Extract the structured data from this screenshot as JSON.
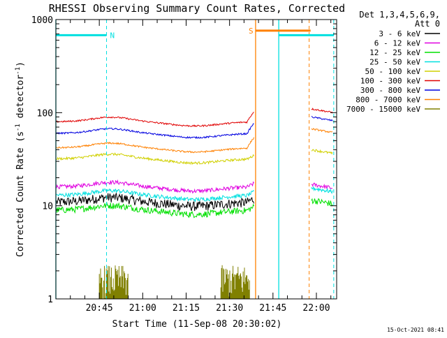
{
  "chart_data": {
    "type": "line",
    "title": "RHESSI Observing Summary Count Rates, Corrected",
    "xlabel": "Start Time (11-Sep-08 20:30:02)",
    "ylabel": "Corrected Count Rate (s⁻¹ detector⁻¹)",
    "ylabel_main": "Corrected Count Rate (s",
    "ylabel_sup1": "-1",
    "ylabel_mid": " detector",
    "ylabel_sup2": "-1",
    "ylabel_end": ")",
    "yscale": "log",
    "ylim": [
      1,
      1000
    ],
    "xlim_minutes": [
      0,
      97
    ],
    "x_unit": "minutes after 20:30:02",
    "y_ticks": [
      {
        "value": 1,
        "label": "1"
      },
      {
        "value": 10,
        "label": "10"
      },
      {
        "value": 100,
        "label": "100"
      },
      {
        "value": 1000,
        "label": "1000"
      }
    ],
    "x_ticks": [
      {
        "value": 15,
        "label": "20:45"
      },
      {
        "value": 30,
        "label": "21:00"
      },
      {
        "value": 45,
        "label": "21:15"
      },
      {
        "value": 60,
        "label": "21:30"
      },
      {
        "value": 75,
        "label": "21:45"
      },
      {
        "value": 90,
        "label": "22:00"
      }
    ],
    "legend_header": [
      "Det 1,3,4,5,6,9,",
      "Att 0"
    ],
    "legend_placement": "right",
    "series": [
      {
        "name": "3 - 6 keV",
        "color": "#000000",
        "base": 11,
        "tail": 0,
        "noise": 0.12
      },
      {
        "name": "6 - 12 keV",
        "color": "#e000e0",
        "base": 16,
        "tail": 17,
        "noise": 0.05
      },
      {
        "name": "12 - 25 keV",
        "color": "#00e000",
        "base": 9,
        "tail": 11.5,
        "noise": 0.08
      },
      {
        "name": "25 - 50 keV",
        "color": "#00e0e0",
        "base": 13,
        "tail": 15.5,
        "noise": 0.05
      },
      {
        "name": "50 - 100 keV",
        "color": "#d0d000",
        "base": 32,
        "tail": 40,
        "noise": 0.03
      },
      {
        "name": "100 - 300 keV",
        "color": "#e00000",
        "base": 80,
        "tail": 110,
        "noise": 0.02
      },
      {
        "name": "300 - 800 keV",
        "color": "#0000e0",
        "base": 60,
        "tail": 90,
        "noise": 0.02
      },
      {
        "name": "800 - 7000 keV",
        "color": "#ff8000",
        "base": 42,
        "tail": 67,
        "noise": 0.02
      },
      {
        "name": "7000 - 15000 keV",
        "color": "#808000",
        "base": 0,
        "tail": 0,
        "noise": 0
      }
    ],
    "annotations": [
      {
        "label": "N",
        "color": "#00e0e0",
        "x_start": 0,
        "x_end": 17.5,
        "y": 680
      },
      {
        "label": "S",
        "color": "#ff8000",
        "x_start": 69,
        "x_end": 88,
        "y": 760
      }
    ],
    "night_bars": [
      {
        "x_start": 77,
        "x_end": 96,
        "y": 680,
        "color": "#00e0e0"
      }
    ],
    "vlines": [
      {
        "x": 0,
        "color": "#00e0e0",
        "style": "solid"
      },
      {
        "x": 17.5,
        "color": "#00e0e0",
        "style": "dashed"
      },
      {
        "x": 69,
        "color": "#ff8000",
        "style": "solid"
      },
      {
        "x": 77,
        "color": "#00e0e0",
        "style": "solid"
      },
      {
        "x": 87.5,
        "color": "#ff8000",
        "style": "dashed"
      },
      {
        "x": 96,
        "color": "#00e0e0",
        "style": "dashed"
      }
    ],
    "grid": false
  },
  "footer_timestamp": "15-Oct-2021 08:41"
}
